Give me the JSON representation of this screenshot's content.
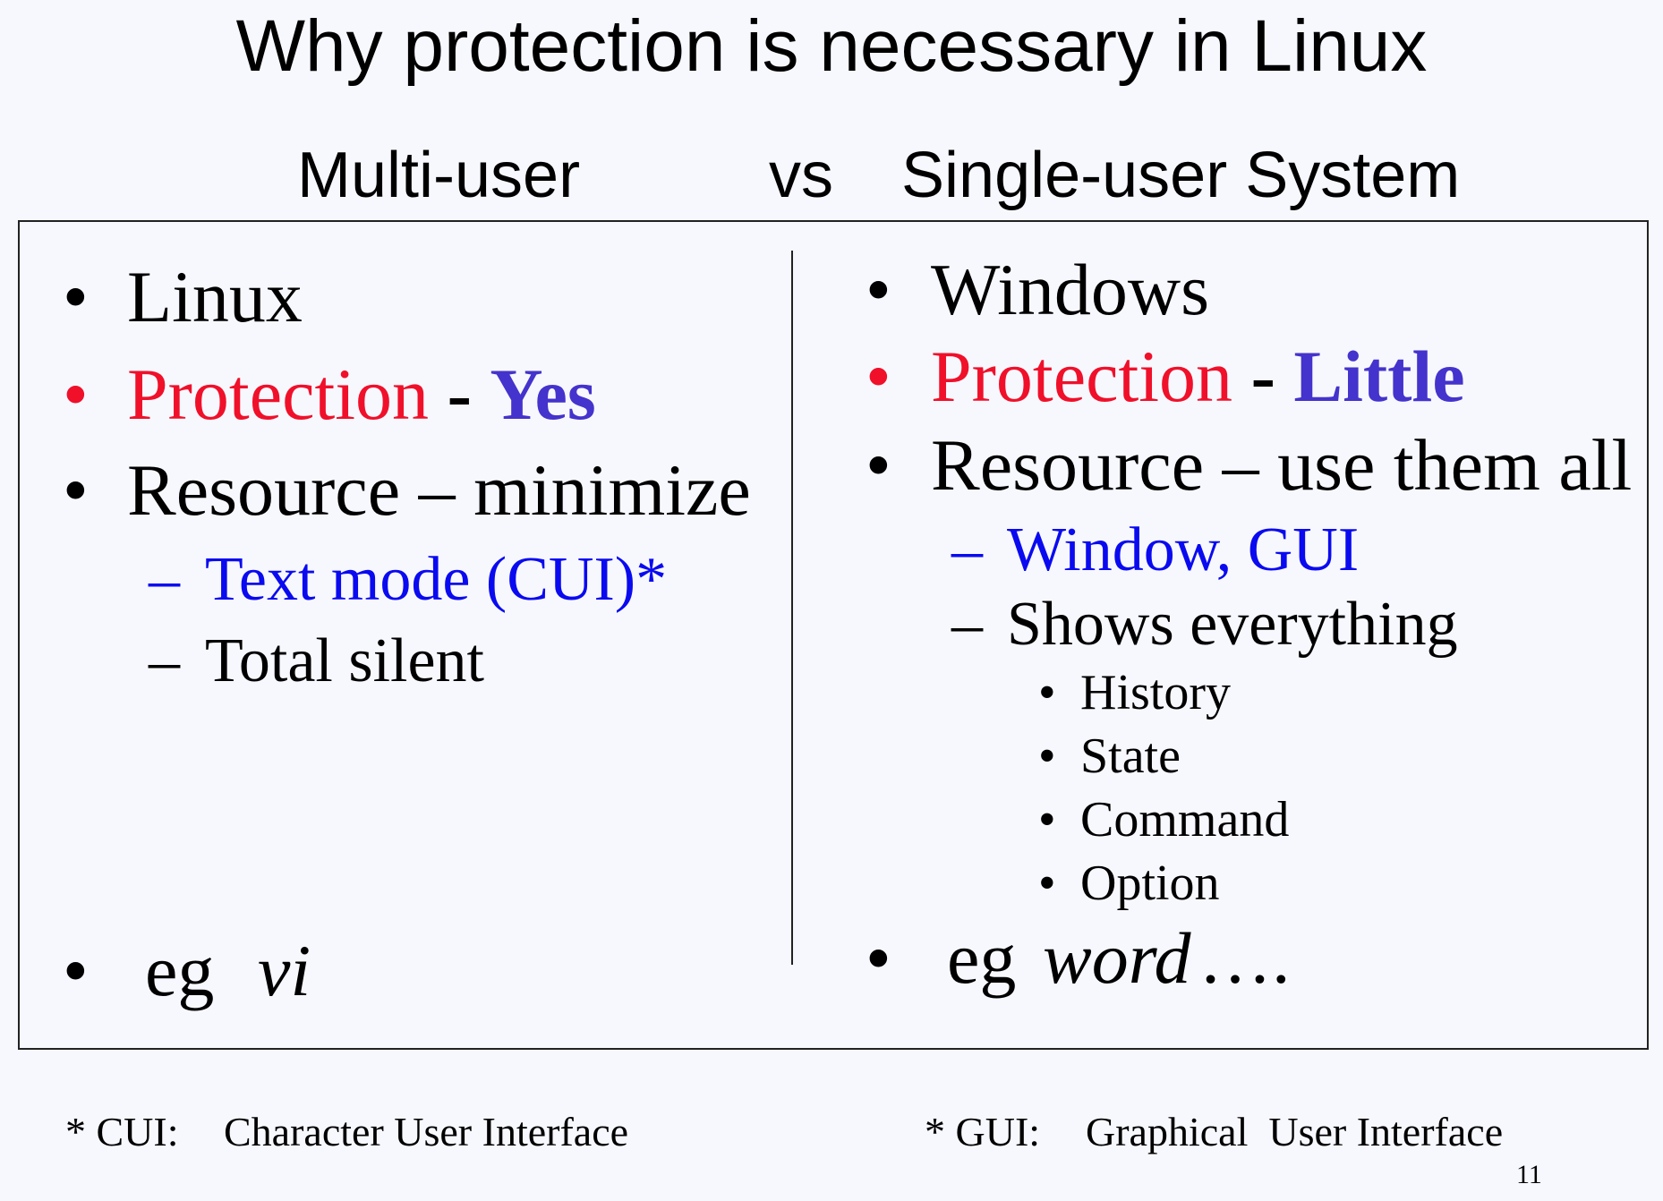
{
  "title": "Why protection is necessary in Linux",
  "subtitle": {
    "left": "Multi-user",
    "vs": "vs",
    "right": "Single-user System"
  },
  "colors": {
    "background": "#f7f8fe",
    "red": "#f0102a",
    "emphasis": "#4433cc",
    "blue": "#0a0af0"
  },
  "bullet": "•",
  "dash": "–",
  "left": {
    "item1": "Linux",
    "protection_label": "Protection",
    "protection_sep": "-",
    "protection_value": "Yes",
    "resource": "Resource – minimize",
    "sub1": "Text mode (CUI)*",
    "sub2": "Total silent",
    "eg": "eg",
    "eg_value": "vi"
  },
  "right": {
    "item1": "Windows",
    "protection_label": "Protection",
    "protection_sep": "-",
    "protection_value": "Little",
    "resource": "Resource – use them all",
    "sub1": "Window, GUI",
    "sub2": "Shows everything",
    "subsub": [
      "History",
      "State",
      "Command",
      "Option"
    ],
    "eg": "eg",
    "eg_value": "word",
    "eg_suffix": "…."
  },
  "footnotes": {
    "cui_key": "* CUI:",
    "cui_text": "Character User Interface",
    "gui_key": "* GUI:",
    "gui_text": "Graphical  User Interface"
  },
  "page_number": "11"
}
